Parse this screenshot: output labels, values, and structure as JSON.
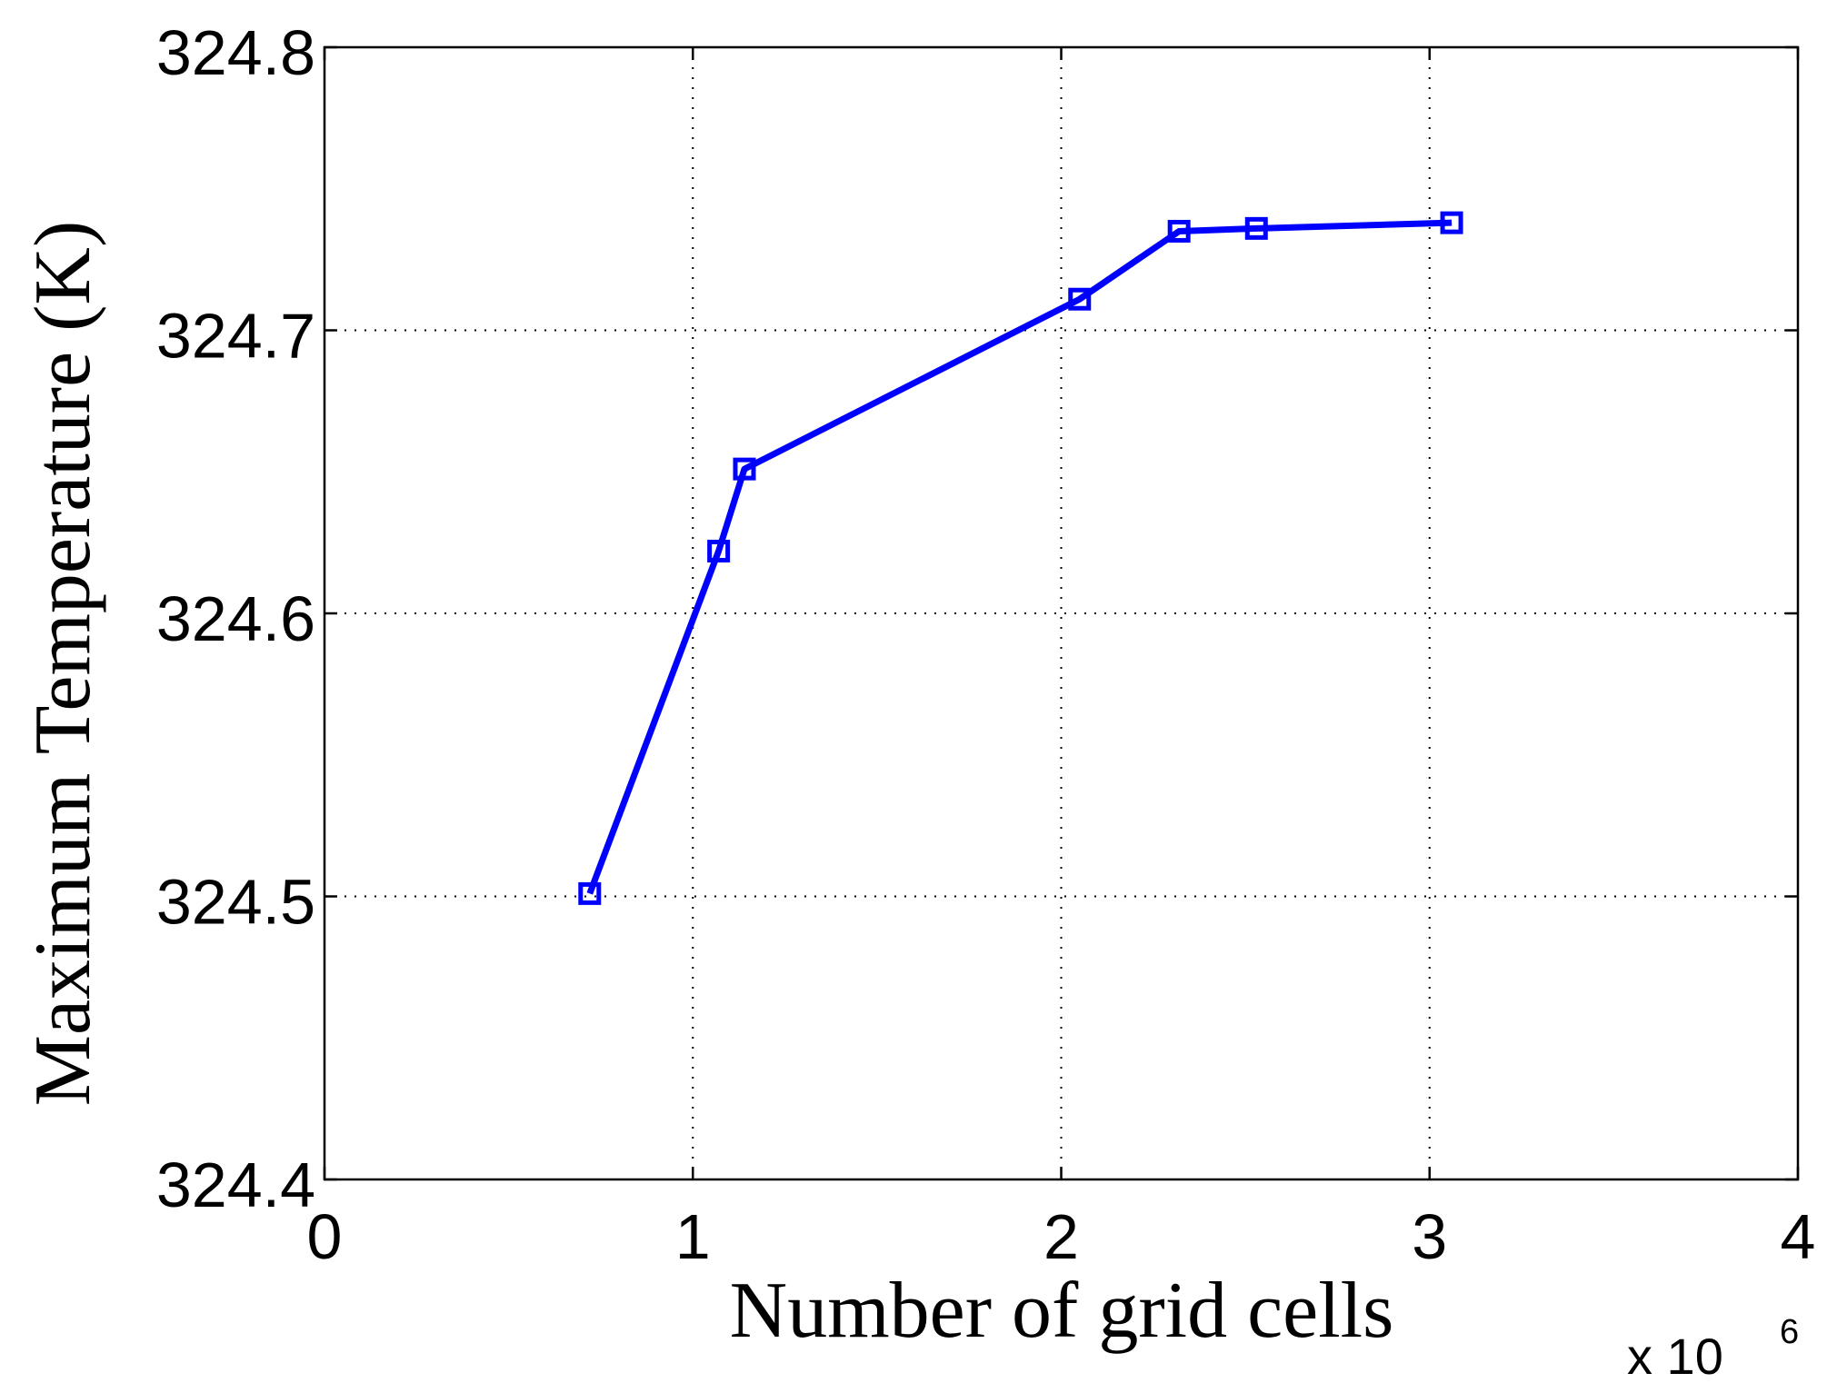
{
  "chart_data": {
    "type": "line",
    "xlabel": "Number of grid cells",
    "ylabel": "Maximum Temperature (K)",
    "x_multiplier": {
      "base": "x 10",
      "exponent": "6"
    },
    "xlim": [
      0,
      4
    ],
    "ylim": [
      324.4,
      324.8
    ],
    "x_ticks": [
      0,
      1,
      2,
      3,
      4
    ],
    "x_tick_labels": [
      "0",
      "1",
      "2",
      "3",
      "4"
    ],
    "y_ticks": [
      324.4,
      324.5,
      324.6,
      324.7,
      324.8
    ],
    "y_tick_labels": [
      "324.4",
      "324.5",
      "324.6",
      "324.7",
      "324.8"
    ],
    "grid": true,
    "series": [
      {
        "color": "#0000ff",
        "marker": "square",
        "x": [
          0.72,
          1.07,
          1.14,
          2.05,
          2.32,
          2.53,
          3.06
        ],
        "y": [
          324.501,
          324.622,
          324.651,
          324.711,
          324.735,
          324.736,
          324.738
        ]
      }
    ]
  }
}
